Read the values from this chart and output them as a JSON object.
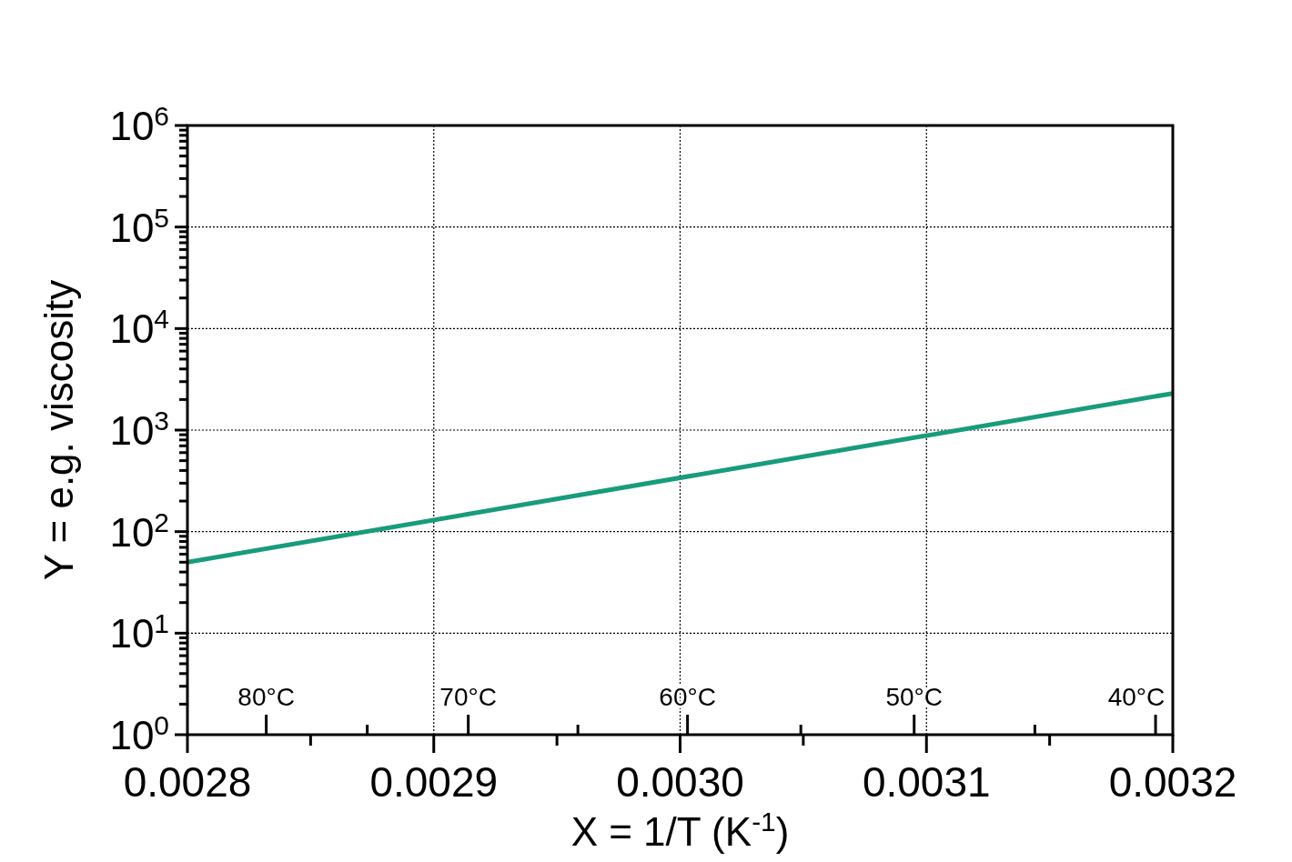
{
  "chart_data": {
    "type": "line",
    "xlabel": "X = 1/T (K$^{-1}$)",
    "ylabel": "Y = e.g. viscosity",
    "x": [
      0.0028,
      0.0032
    ],
    "series": [
      {
        "color": "#189c7b",
        "values": [
          50,
          2300
        ]
      }
    ],
    "log": "y",
    "grid": true,
    "marker": "none",
    "line_style": "solid",
    "xlim": [
      0.0028,
      0.0032
    ],
    "xticks": [
      {
        "value": 0.0028,
        "label": "0.0028"
      },
      {
        "value": 0.00285,
        "label": null
      },
      {
        "value": 0.0029,
        "label": "0.0029"
      },
      {
        "value": 0.00295,
        "label": null
      },
      {
        "value": 0.003,
        "label": "0.0030"
      },
      {
        "value": 0.00305,
        "label": null
      },
      {
        "value": 0.0031,
        "label": "0.0031"
      },
      {
        "value": 0.00315,
        "label": null
      },
      {
        "value": 0.0032,
        "label": "0.0032"
      }
    ],
    "ref_lines": [
      {
        "axis": "x",
        "value": 0.002832,
        "label": "80°C"
      },
      {
        "axis": "x",
        "value": 0.002914,
        "label": "70°C"
      },
      {
        "axis": "x",
        "value": 0.003003,
        "label": "60°C"
      },
      {
        "axis": "x",
        "value": 0.003095,
        "label": "50°C"
      },
      {
        "axis": "x",
        "value": 0.003193,
        "label": "40°C"
      }
    ],
    "ylim": [
      1,
      1000000
    ],
    "yticks": [
      {
        "value": 1,
        "label": "10$^{0}$"
      },
      {
        "value": 2,
        "label": null
      },
      {
        "value": 3,
        "label": null
      },
      {
        "value": 4,
        "label": null
      },
      {
        "value": 5,
        "label": null
      },
      {
        "value": 6,
        "label": null
      },
      {
        "value": 7,
        "label": null
      },
      {
        "value": 8,
        "label": null
      },
      {
        "value": 9,
        "label": null
      },
      {
        "value": 10,
        "label": "10$^{1}$"
      },
      {
        "value": 20,
        "label": null
      },
      {
        "value": 30,
        "label": null
      },
      {
        "value": 40,
        "label": null
      },
      {
        "value": 50,
        "label": null
      },
      {
        "value": 60,
        "label": null
      },
      {
        "value": 70,
        "label": null
      },
      {
        "value": 80,
        "label": null
      },
      {
        "value": 90,
        "label": null
      },
      {
        "value": 100,
        "label": "10$^{2}$"
      },
      {
        "value": 200,
        "label": null
      },
      {
        "value": 300,
        "label": null
      },
      {
        "value": 400,
        "label": null
      },
      {
        "value": 500,
        "label": null
      },
      {
        "value": 600,
        "label": null
      },
      {
        "value": 700,
        "label": null
      },
      {
        "value": 800,
        "label": null
      },
      {
        "value": 900,
        "label": null
      },
      {
        "value": 1000,
        "label": "10$^{3}$"
      },
      {
        "value": 2000,
        "label": null
      },
      {
        "value": 3000,
        "label": null
      },
      {
        "value": 4000,
        "label": null
      },
      {
        "value": 5000,
        "label": null
      },
      {
        "value": 6000,
        "label": null
      },
      {
        "value": 7000,
        "label": null
      },
      {
        "value": 8000,
        "label": null
      },
      {
        "value": 9000,
        "label": null
      },
      {
        "value": 10000,
        "label": "10$^{4}$"
      },
      {
        "value": 20000,
        "label": null
      },
      {
        "value": 30000,
        "label": null
      },
      {
        "value": 40000,
        "label": null
      },
      {
        "value": 50000,
        "label": null
      },
      {
        "value": 60000,
        "label": null
      },
      {
        "value": 70000,
        "label": null
      },
      {
        "value": 80000,
        "label": null
      },
      {
        "value": 90000,
        "label": null
      },
      {
        "value": 100000,
        "label": "10$^{5}$"
      },
      {
        "value": 200000,
        "label": null
      },
      {
        "value": 300000,
        "label": null
      },
      {
        "value": 400000,
        "label": null
      },
      {
        "value": 500000,
        "label": null
      },
      {
        "value": 600000,
        "label": null
      },
      {
        "value": 700000,
        "label": null
      },
      {
        "value": 800000,
        "label": null
      },
      {
        "value": 900000,
        "label": null
      },
      {
        "value": 1000000,
        "label": "10$^{6}$"
      }
    ]
  }
}
